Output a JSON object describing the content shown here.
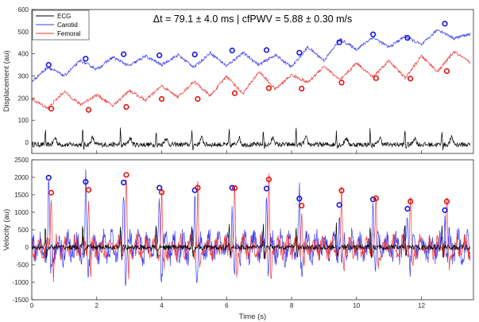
{
  "chart_data": [
    {
      "type": "line",
      "title": "Δt = 79.1 ± 4.0 ms | cfPWV = 5.88 ± 0.30 m/s",
      "xlabel": "",
      "ylabel": "Displacement (au)",
      "xlim": [
        0,
        13.6
      ],
      "ylim": [
        -50,
        600
      ],
      "yticks": [
        "0",
        "100",
        "200",
        "300",
        "400",
        "500",
        "600"
      ],
      "grid": false,
      "legend": {
        "placement": "top-left"
      },
      "series": [
        {
          "name": "ECG",
          "color": "#000000",
          "role": "ecg",
          "baseline": -10,
          "peak": 70
        },
        {
          "name": "Carotid",
          "color": "#3b3bf0",
          "x": [
            0.0,
            0.5,
            1.0,
            1.5,
            2.0,
            2.5,
            3.0,
            3.5,
            4.0,
            4.5,
            5.0,
            5.5,
            6.0,
            6.5,
            7.0,
            7.5,
            8.0,
            8.5,
            9.0,
            9.5,
            10.0,
            10.5,
            11.0,
            11.5,
            12.0,
            12.5,
            13.0,
            13.5
          ],
          "y": [
            275,
            340,
            300,
            370,
            330,
            385,
            345,
            390,
            350,
            395,
            340,
            405,
            345,
            405,
            350,
            395,
            340,
            430,
            370,
            465,
            420,
            475,
            430,
            480,
            440,
            510,
            470,
            490
          ]
        },
        {
          "name": "Femoral",
          "color": "#ee3a3a",
          "x": [
            0.0,
            0.5,
            1.0,
            1.5,
            2.0,
            2.5,
            3.0,
            3.5,
            4.0,
            4.5,
            5.0,
            5.5,
            6.0,
            6.5,
            7.0,
            7.5,
            8.0,
            8.5,
            9.0,
            9.5,
            10.0,
            10.5,
            11.0,
            11.5,
            12.0,
            12.5,
            13.0,
            13.5
          ],
          "y": [
            195,
            155,
            230,
            170,
            215,
            165,
            235,
            190,
            255,
            205,
            275,
            210,
            300,
            220,
            320,
            240,
            305,
            270,
            345,
            280,
            360,
            295,
            370,
            290,
            390,
            320,
            410,
            360
          ]
        }
      ],
      "markers": {
        "carotid": {
          "color": "#1010e0",
          "x": [
            0.52,
            1.66,
            2.83,
            3.93,
            5.02,
            6.17,
            7.23,
            8.24,
            9.47,
            10.51,
            11.57,
            12.72
          ],
          "y": [
            350,
            378,
            398,
            393,
            397,
            415,
            417,
            405,
            452,
            488,
            472,
            536
          ]
        },
        "femoral": {
          "color": "#e01010",
          "x": [
            0.6,
            1.75,
            2.91,
            4.0,
            5.11,
            6.25,
            7.3,
            8.31,
            9.54,
            10.6,
            11.66,
            12.78
          ],
          "y": [
            152,
            147,
            160,
            196,
            196,
            222,
            245,
            243,
            270,
            290,
            288,
            322
          ]
        }
      }
    },
    {
      "type": "line",
      "title": "",
      "xlabel": "Time (s)",
      "ylabel": "Velocity (au)",
      "xlim": [
        0,
        13.6
      ],
      "ylim": [
        -1500,
        2500
      ],
      "xticks": [
        "0",
        "2",
        "4",
        "6",
        "8",
        "10",
        "12"
      ],
      "yticks": [
        "-1500",
        "-1000",
        "-500",
        "0",
        "500",
        "1000",
        "1500",
        "2000",
        "2500"
      ],
      "grid": false,
      "series": [
        {
          "name": "ECG",
          "color": "#000000",
          "role": "velocity_ecg",
          "amplitude": 150
        },
        {
          "name": "Carotid",
          "color": "#3b3bf0",
          "role": "velocity_noise",
          "amplitude": 650
        },
        {
          "name": "Femoral",
          "color": "#ee3a3a",
          "role": "velocity_noise",
          "amplitude": 450
        }
      ],
      "beats_x": [
        0.42,
        1.57,
        2.73,
        3.83,
        4.93,
        6.08,
        7.13,
        8.14,
        9.38,
        10.42,
        11.49,
        12.63
      ],
      "markers": {
        "carotid": {
          "color": "#1010e0",
          "x": [
            0.52,
            1.66,
            2.83,
            3.93,
            5.02,
            6.17,
            7.23,
            8.24,
            9.47,
            10.51,
            11.57,
            12.72
          ],
          "y": [
            1990,
            1870,
            1850,
            1700,
            1630,
            1700,
            1680,
            1390,
            1210,
            1370,
            1100,
            1060
          ]
        },
        "femoral": {
          "color": "#e01010",
          "x": [
            0.6,
            1.75,
            2.91,
            4.0,
            5.11,
            6.25,
            7.3,
            8.31,
            9.54,
            10.6,
            11.66,
            12.78
          ],
          "y": [
            1560,
            1640,
            2070,
            1570,
            1700,
            1690,
            1940,
            1190,
            1620,
            1400,
            1310,
            1310
          ]
        }
      }
    }
  ]
}
